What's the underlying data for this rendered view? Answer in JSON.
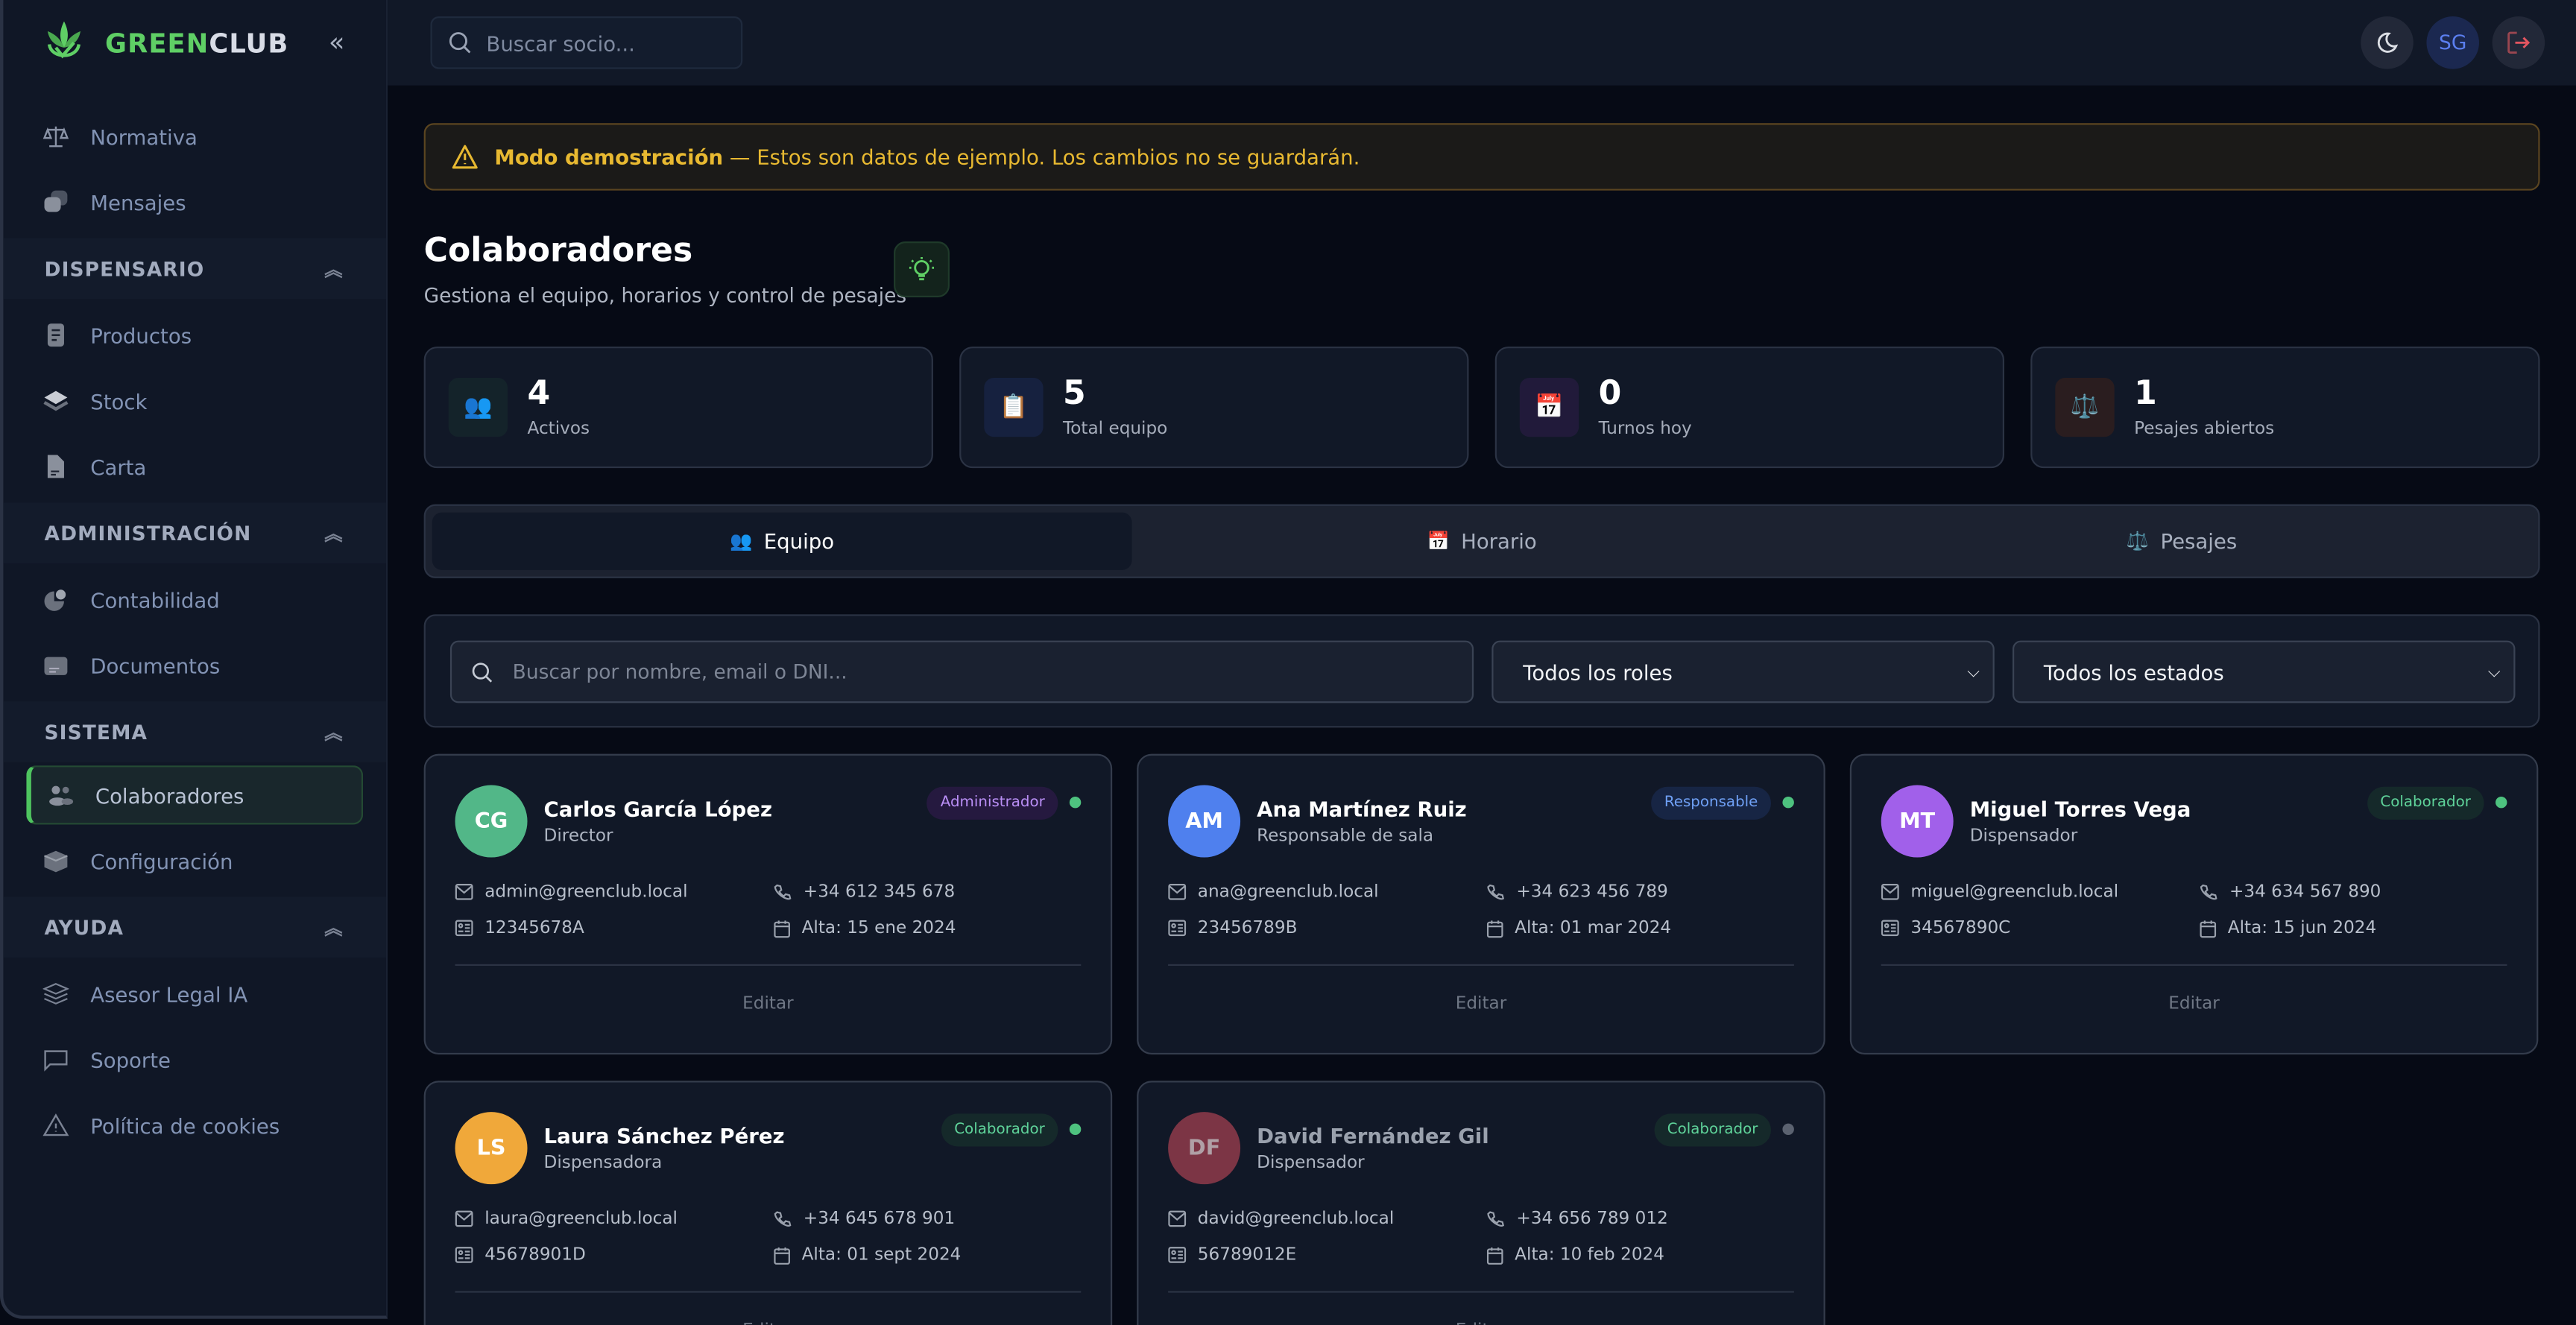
{
  "brand": {
    "name_green": "GREEN",
    "name_rest": "CLUB",
    "accent": "#5fcf65"
  },
  "sidebar": {
    "groups": [
      {
        "header": null,
        "items": [
          {
            "label": "Normativa",
            "icon": "scale-icon"
          },
          {
            "label": "Mensajes",
            "icon": "chat-bubbles-icon"
          }
        ]
      },
      {
        "header": "DISPENSARIO",
        "items": [
          {
            "label": "Productos",
            "icon": "document-list-icon"
          },
          {
            "label": "Stock",
            "icon": "layers-icon"
          },
          {
            "label": "Carta",
            "icon": "file-icon"
          }
        ]
      },
      {
        "header": "ADMINISTRACIÓN",
        "items": [
          {
            "label": "Contabilidad",
            "icon": "pie-chart-icon"
          },
          {
            "label": "Documentos",
            "icon": "folder-file-icon"
          }
        ]
      },
      {
        "header": "SISTEMA",
        "items": [
          {
            "label": "Colaboradores",
            "icon": "users-icon",
            "active": true
          },
          {
            "label": "Configuración",
            "icon": "cube-icon"
          }
        ]
      },
      {
        "header": "AYUDA",
        "items": [
          {
            "label": "Asesor Legal IA",
            "icon": "stack-icon"
          },
          {
            "label": "Soporte",
            "icon": "message-square-icon"
          },
          {
            "label": "Política de cookies",
            "icon": "warning-icon"
          }
        ]
      }
    ]
  },
  "topbar": {
    "search_placeholder": "Buscar socio...",
    "user_initials": "SG"
  },
  "banner": {
    "strong": "Modo demostración",
    "text": " — Estos son datos de ejemplo. Los cambios no se guardarán."
  },
  "page": {
    "title": "Colaboradores",
    "subtitle": "Gestiona el equipo, horarios y control de pesajes"
  },
  "stats": [
    {
      "value": "4",
      "label": "Activos",
      "icon": "👥",
      "bg": "#14232a"
    },
    {
      "value": "5",
      "label": "Total equipo",
      "icon": "📋",
      "bg": "#16213f"
    },
    {
      "value": "0",
      "label": "Turnos hoy",
      "icon": "📅",
      "bg": "#211a3a"
    },
    {
      "value": "1",
      "label": "Pesajes abiertos",
      "icon": "⚖️",
      "bg": "#2a1d1f"
    }
  ],
  "tabs": [
    {
      "label": "Equipo",
      "icon": "👥",
      "active": true
    },
    {
      "label": "Horario",
      "icon": "📅"
    },
    {
      "label": "Pesajes",
      "icon": "⚖️"
    }
  ],
  "filters": {
    "search_placeholder": "Buscar por nombre, email o DNI...",
    "role_selected": "Todos los roles",
    "status_selected": "Todos los estados"
  },
  "edit_label": "Editar",
  "members": [
    {
      "initials": "CG",
      "name": "Carlos García López",
      "position": "Director",
      "role": "Administrador",
      "role_bg": "#25193f",
      "role_fg": "#b98ef5",
      "avatar": "#52b788",
      "active": true,
      "email": "admin@greenclub.local",
      "phone": "+34 612 345 678",
      "dni": "12345678A",
      "since": "Alta: 15 ene 2024"
    },
    {
      "initials": "AM",
      "name": "Ana Martínez Ruiz",
      "position": "Responsable de sala",
      "role": "Responsable",
      "role_bg": "#172544",
      "role_fg": "#6fa0f5",
      "avatar": "#4f80ee",
      "active": true,
      "email": "ana@greenclub.local",
      "phone": "+34 623 456 789",
      "dni": "23456789B",
      "since": "Alta: 01 mar 2024"
    },
    {
      "initials": "MT",
      "name": "Miguel Torres Vega",
      "position": "Dispensador",
      "role": "Colaborador",
      "role_bg": "#15292a",
      "role_fg": "#5fd39a",
      "avatar": "#a160ea",
      "active": true,
      "email": "miguel@greenclub.local",
      "phone": "+34 634 567 890",
      "dni": "34567890C",
      "since": "Alta: 15 jun 2024"
    },
    {
      "initials": "LS",
      "name": "Laura Sánchez Pérez",
      "position": "Dispensadora",
      "role": "Colaborador",
      "role_bg": "#15292a",
      "role_fg": "#5fd39a",
      "avatar": "#f0a83a",
      "active": true,
      "email": "laura@greenclub.local",
      "phone": "+34 645 678 901",
      "dni": "45678901D",
      "since": "Alta: 01 sept 2024"
    },
    {
      "initials": "DF",
      "name": "David Fernández Gil",
      "position": "Dispensador",
      "role": "Colaborador",
      "role_bg": "#15292a",
      "role_fg": "#5fd39a",
      "avatar": "#7c3545",
      "active": false,
      "email": "david@greenclub.local",
      "phone": "+34 656 789 012",
      "dni": "56789012E",
      "since": "Alta: 10 feb 2024"
    }
  ]
}
